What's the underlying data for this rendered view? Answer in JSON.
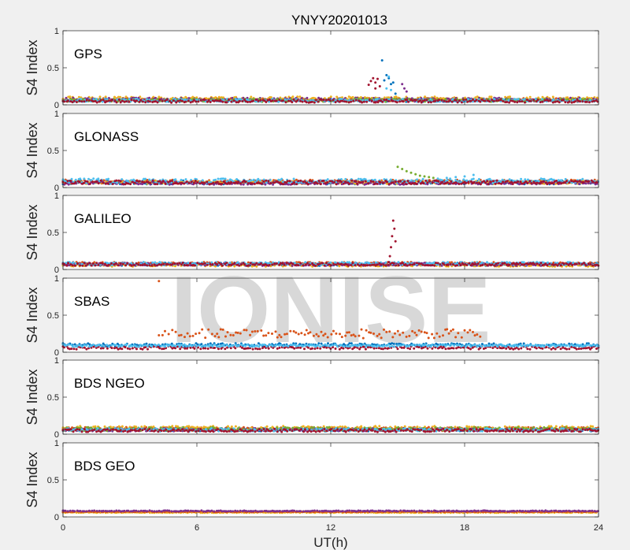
{
  "chart_data": {
    "type": "scatter",
    "title": "YNYY20201013",
    "xlabel": "UT(h)",
    "ylabel": "S4 Index",
    "xlim": [
      0,
      24
    ],
    "ylim": [
      0,
      1
    ],
    "xticks": [
      0,
      6,
      12,
      18,
      24
    ],
    "xtick_labels": [
      "0",
      "6",
      "12",
      "18",
      "24"
    ],
    "yticks": [
      0,
      0.5,
      1
    ],
    "ytick_labels": [
      "0",
      "0.5",
      "1"
    ],
    "grid": false,
    "watermark": "IONISE",
    "colors": [
      "#0072BD",
      "#D95319",
      "#EDB120",
      "#7E2F8E",
      "#77AC30",
      "#4DBEEE",
      "#A2142F"
    ],
    "panels": [
      {
        "label": "GPS",
        "baseline": [
          {
            "color": 0,
            "x0": 0,
            "x1": 24,
            "level": 0.06,
            "noise": 0.02
          },
          {
            "color": 1,
            "x0": 0,
            "x1": 24,
            "level": 0.07,
            "noise": 0.02
          },
          {
            "color": 2,
            "x0": 0,
            "x1": 24,
            "level": 0.08,
            "noise": 0.03
          },
          {
            "color": 3,
            "x0": 0,
            "x1": 24,
            "level": 0.07,
            "noise": 0.025
          },
          {
            "color": 4,
            "x0": 0,
            "x1": 24,
            "level": 0.06,
            "noise": 0.02
          },
          {
            "color": 5,
            "x0": 0,
            "x1": 24,
            "level": 0.06,
            "noise": 0.02
          },
          {
            "color": 6,
            "x0": 0,
            "x1": 24,
            "level": 0.05,
            "noise": 0.02
          }
        ],
        "events": [
          {
            "color": 6,
            "x": [
              13.7,
              13.8,
              13.9,
              14.0,
              14.0,
              14.1,
              14.2
            ],
            "y": [
              0.27,
              0.32,
              0.36,
              0.3,
              0.22,
              0.35,
              0.25
            ]
          },
          {
            "color": 0,
            "x": [
              14.3,
              14.4,
              14.5,
              14.6,
              14.7,
              14.8,
              14.9
            ],
            "y": [
              0.6,
              0.33,
              0.4,
              0.36,
              0.28,
              0.3,
              0.15
            ]
          },
          {
            "color": 5,
            "x": [
              14.5,
              14.6,
              14.7
            ],
            "y": [
              0.22,
              0.38,
              0.2
            ]
          },
          {
            "color": 3,
            "x": [
              15.2,
              15.3,
              15.4
            ],
            "y": [
              0.28,
              0.22,
              0.18
            ]
          }
        ]
      },
      {
        "label": "GLONASS",
        "baseline": [
          {
            "color": 0,
            "x0": 0,
            "x1": 24,
            "level": 0.07,
            "noise": 0.025
          },
          {
            "color": 1,
            "x0": 0,
            "x1": 24,
            "level": 0.08,
            "noise": 0.025
          },
          {
            "color": 2,
            "x0": 0,
            "x1": 24,
            "level": 0.07,
            "noise": 0.02
          },
          {
            "color": 3,
            "x0": 0,
            "x1": 24,
            "level": 0.06,
            "noise": 0.02
          },
          {
            "color": 5,
            "x0": 0,
            "x1": 24,
            "level": 0.09,
            "noise": 0.03
          },
          {
            "color": 6,
            "x0": 0,
            "x1": 24,
            "level": 0.07,
            "noise": 0.025
          }
        ],
        "events": [
          {
            "color": 4,
            "x": [
              15.0,
              15.2,
              15.4,
              15.6,
              15.8,
              16.0,
              16.2,
              16.4,
              16.6
            ],
            "y": [
              0.28,
              0.25,
              0.22,
              0.2,
              0.18,
              0.16,
              0.15,
              0.14,
              0.13
            ]
          },
          {
            "color": 5,
            "x": [
              16.8,
              17.2,
              17.6,
              18.0,
              18.4
            ],
            "y": [
              0.12,
              0.13,
              0.14,
              0.15,
              0.17
            ]
          }
        ]
      },
      {
        "label": "GALILEO",
        "baseline": [
          {
            "color": 0,
            "x0": 0,
            "x1": 24,
            "level": 0.07,
            "noise": 0.02
          },
          {
            "color": 1,
            "x0": 0,
            "x1": 24,
            "level": 0.08,
            "noise": 0.02
          },
          {
            "color": 2,
            "x0": 0,
            "x1": 24,
            "level": 0.06,
            "noise": 0.02
          },
          {
            "color": 3,
            "x0": 0,
            "x1": 24,
            "level": 0.07,
            "noise": 0.02
          },
          {
            "color": 5,
            "x0": 0,
            "x1": 24,
            "level": 0.08,
            "noise": 0.02
          },
          {
            "color": 6,
            "x0": 0,
            "x1": 24,
            "level": 0.07,
            "noise": 0.02
          }
        ],
        "events": [
          {
            "color": 6,
            "x": [
              14.6,
              14.65,
              14.7,
              14.75,
              14.8,
              14.85,
              14.9
            ],
            "y": [
              0.1,
              0.18,
              0.3,
              0.45,
              0.66,
              0.55,
              0.38
            ]
          }
        ]
      },
      {
        "label": "SBAS",
        "baseline": [
          {
            "color": 0,
            "x0": 0,
            "x1": 24,
            "level": 0.1,
            "noise": 0.02
          },
          {
            "color": 6,
            "x0": 0,
            "x1": 24,
            "level": 0.06,
            "noise": 0.02
          },
          {
            "color": 5,
            "x0": 0,
            "x1": 24,
            "level": 0.09,
            "noise": 0.015
          }
        ],
        "events": [
          {
            "color": 1,
            "x": [
              4.3
            ],
            "y": [
              0.96
            ]
          },
          {
            "color": 1,
            "x0": 4.3,
            "x1": 18.8,
            "level": 0.25,
            "noise": 0.06,
            "step": 0.12
          }
        ]
      },
      {
        "label": "BDS NGEO",
        "baseline": [
          {
            "color": 0,
            "x0": 0,
            "x1": 24,
            "level": 0.06,
            "noise": 0.02
          },
          {
            "color": 1,
            "x0": 0,
            "x1": 24,
            "level": 0.07,
            "noise": 0.025
          },
          {
            "color": 2,
            "x0": 0,
            "x1": 24,
            "level": 0.08,
            "noise": 0.03
          },
          {
            "color": 3,
            "x0": 0,
            "x1": 24,
            "level": 0.06,
            "noise": 0.02
          },
          {
            "color": 4,
            "x0": 0,
            "x1": 24,
            "level": 0.07,
            "noise": 0.025
          },
          {
            "color": 5,
            "x0": 0,
            "x1": 24,
            "level": 0.06,
            "noise": 0.02
          },
          {
            "color": 6,
            "x0": 0,
            "x1": 24,
            "level": 0.05,
            "noise": 0.02
          }
        ],
        "events": []
      },
      {
        "label": "BDS GEO",
        "baseline": [
          {
            "color": 2,
            "x0": 0,
            "x1": 24,
            "level": 0.06,
            "noise": 0.005
          },
          {
            "color": 1,
            "x0": 0,
            "x1": 24,
            "level": 0.07,
            "noise": 0.005
          },
          {
            "color": 3,
            "x0": 0,
            "x1": 24,
            "level": 0.08,
            "noise": 0.006
          }
        ],
        "events": []
      }
    ]
  }
}
